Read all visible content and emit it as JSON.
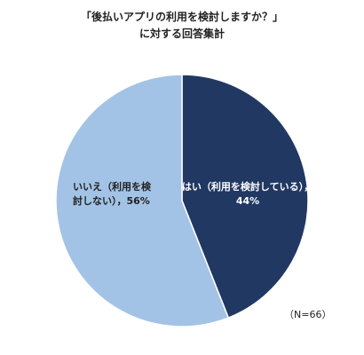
{
  "chart_data": {
    "type": "pie",
    "title_lines": [
      "「後払いアプリの利用を検討しますか？」",
      "に対する回答集計"
    ],
    "slices": [
      {
        "name": "はい（利用を検討している）",
        "value": 44,
        "label_lines": [
          "はい（利用を検討している），",
          "44%"
        ],
        "color": "#213862",
        "label_color": "#ffffff"
      },
      {
        "name": "いいえ（利用を検討しない）",
        "value": 56,
        "label_lines": [
          "いいえ（利用を検",
          "討しない），56%"
        ],
        "color": "#a3c3e6",
        "label_color": "#222222"
      }
    ],
    "start": "12-o'clock",
    "direction": "clockwise",
    "note": "（N=66）"
  }
}
